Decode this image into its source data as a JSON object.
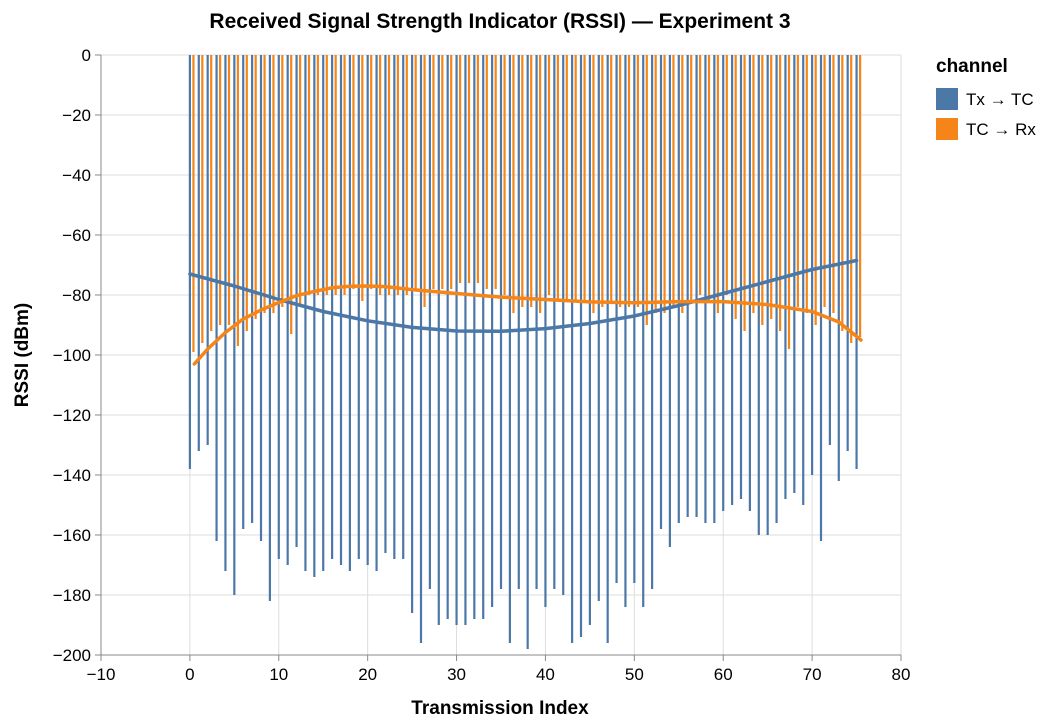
{
  "chart_data": {
    "type": "bar",
    "title": "Received Signal Strength Indicator (RSSI) — Experiment 3",
    "xlabel": "Transmission Index",
    "ylabel": "RSSI (dBm)",
    "xlim": [
      -10,
      80
    ],
    "ylim": [
      -200,
      0
    ],
    "x_ticks": [
      -10,
      0,
      10,
      20,
      30,
      40,
      50,
      60,
      70,
      80
    ],
    "x_tick_labels": [
      "−10",
      "0",
      "10",
      "20",
      "30",
      "40",
      "50",
      "60",
      "70",
      "80"
    ],
    "y_ticks": [
      0,
      -20,
      -40,
      -60,
      -80,
      -100,
      -120,
      -140,
      -160,
      -180,
      -200
    ],
    "y_tick_labels": [
      "0",
      "−20",
      "−40",
      "−60",
      "−80",
      "−100",
      "−120",
      "−140",
      "−160",
      "−180",
      "−200"
    ],
    "grid": true,
    "legend": {
      "title": "channel",
      "position": "right"
    },
    "series": [
      {
        "name": "Tx → TC",
        "color": "#4c78a8",
        "x": [
          0,
          1,
          2,
          3,
          4,
          5,
          6,
          7,
          8,
          9,
          10,
          11,
          12,
          13,
          14,
          15,
          16,
          17,
          18,
          19,
          20,
          21,
          22,
          23,
          24,
          25,
          26,
          27,
          28,
          29,
          30,
          31,
          32,
          33,
          34,
          35,
          36,
          37,
          38,
          39,
          40,
          41,
          42,
          43,
          44,
          45,
          46,
          47,
          48,
          49,
          50,
          51,
          52,
          53,
          54,
          55,
          56,
          57,
          58,
          59,
          60,
          61,
          62,
          63,
          64,
          65,
          66,
          67,
          68,
          69,
          70,
          71,
          72,
          73,
          74,
          75
        ],
        "values": [
          -138,
          -132,
          -130,
          -162,
          -172,
          -180,
          -158,
          -156,
          -162,
          -182,
          -168,
          -170,
          -164,
          -172,
          -174,
          -172,
          -168,
          -170,
          -172,
          -168,
          -170,
          -172,
          -166,
          -168,
          -168,
          -186,
          -196,
          -178,
          -190,
          -188,
          -190,
          -190,
          -188,
          -188,
          -184,
          -178,
          -196,
          -178,
          -198,
          -178,
          -184,
          -178,
          -180,
          -196,
          -194,
          -190,
          -182,
          -196,
          -176,
          -184,
          -176,
          -184,
          -178,
          -158,
          -164,
          -156,
          -154,
          -154,
          -156,
          -156,
          -152,
          -150,
          -148,
          -152,
          -160,
          -160,
          -156,
          -148,
          -146,
          -150,
          -140,
          -162,
          -130,
          -142,
          -132,
          -138
        ]
      },
      {
        "name": "TC → Rx",
        "color": "#f58518",
        "x": [
          0.4,
          1.4,
          2.4,
          3.4,
          4.4,
          5.4,
          6.4,
          7.4,
          8.4,
          9.4,
          10.4,
          11.4,
          12.4,
          13.4,
          14.4,
          15.4,
          16.4,
          17.4,
          18.4,
          19.4,
          20.4,
          21.4,
          22.4,
          23.4,
          24.4,
          25.4,
          26.4,
          27.4,
          28.4,
          29.4,
          30.4,
          31.4,
          32.4,
          33.4,
          34.4,
          35.4,
          36.4,
          37.4,
          38.4,
          39.4,
          40.4,
          41.4,
          42.4,
          43.4,
          44.4,
          45.4,
          46.4,
          47.4,
          48.4,
          49.4,
          50.4,
          51.4,
          52.4,
          53.4,
          54.4,
          55.4,
          56.4,
          57.4,
          58.4,
          59.4,
          60.4,
          61.4,
          62.4,
          63.4,
          64.4,
          65.4,
          66.4,
          67.4,
          68.4,
          69.4,
          70.4,
          71.4,
          72.4,
          73.4,
          74.4,
          75.4
        ],
        "values": [
          -99,
          -96,
          -92,
          -90,
          -90,
          -97,
          -92,
          -88,
          -86,
          -86,
          -84,
          -93,
          -84,
          -80,
          -80,
          -80,
          -80,
          -80,
          -78,
          -82,
          -78,
          -80,
          -80,
          -80,
          -80,
          -78,
          -84,
          -78,
          -78,
          -78,
          -76,
          -76,
          -76,
          -78,
          -78,
          -80,
          -86,
          -84,
          -84,
          -86,
          -80,
          -82,
          -82,
          -82,
          -82,
          -86,
          -84,
          -82,
          -84,
          -84,
          -84,
          -90,
          -86,
          -86,
          -84,
          -86,
          -82,
          -80,
          -82,
          -86,
          -80,
          -88,
          -92,
          -86,
          -90,
          -88,
          -92,
          -98,
          -84,
          -86,
          -90,
          -84,
          -86,
          -92,
          -96,
          -94
        ]
      }
    ],
    "trend_lines": [
      {
        "series": "Tx → TC",
        "x": [
          0,
          5,
          10,
          15,
          20,
          25,
          30,
          35,
          40,
          45,
          50,
          55,
          60,
          65,
          70,
          75
        ],
        "values": [
          -73,
          -77,
          -81.5,
          -85.5,
          -88.6,
          -90.8,
          -92,
          -92.1,
          -91.2,
          -89.5,
          -87,
          -83.5,
          -79.5,
          -75.5,
          -71.5,
          -68.5
        ]
      },
      {
        "series": "TC → Rx",
        "x": [
          0.5,
          2,
          4,
          6,
          8,
          10,
          12,
          14,
          16,
          18,
          20,
          22,
          25,
          30,
          35,
          40,
          45,
          50,
          55,
          60,
          65,
          70,
          73,
          75.5
        ],
        "values": [
          -103,
          -98,
          -92.5,
          -88,
          -85,
          -82.5,
          -80.2,
          -78.8,
          -77.6,
          -77.1,
          -77.0,
          -77.2,
          -78.2,
          -79.5,
          -80.7,
          -81.5,
          -82.3,
          -82.6,
          -82.2,
          -82.2,
          -83.2,
          -85.5,
          -89,
          -95
        ]
      }
    ]
  }
}
